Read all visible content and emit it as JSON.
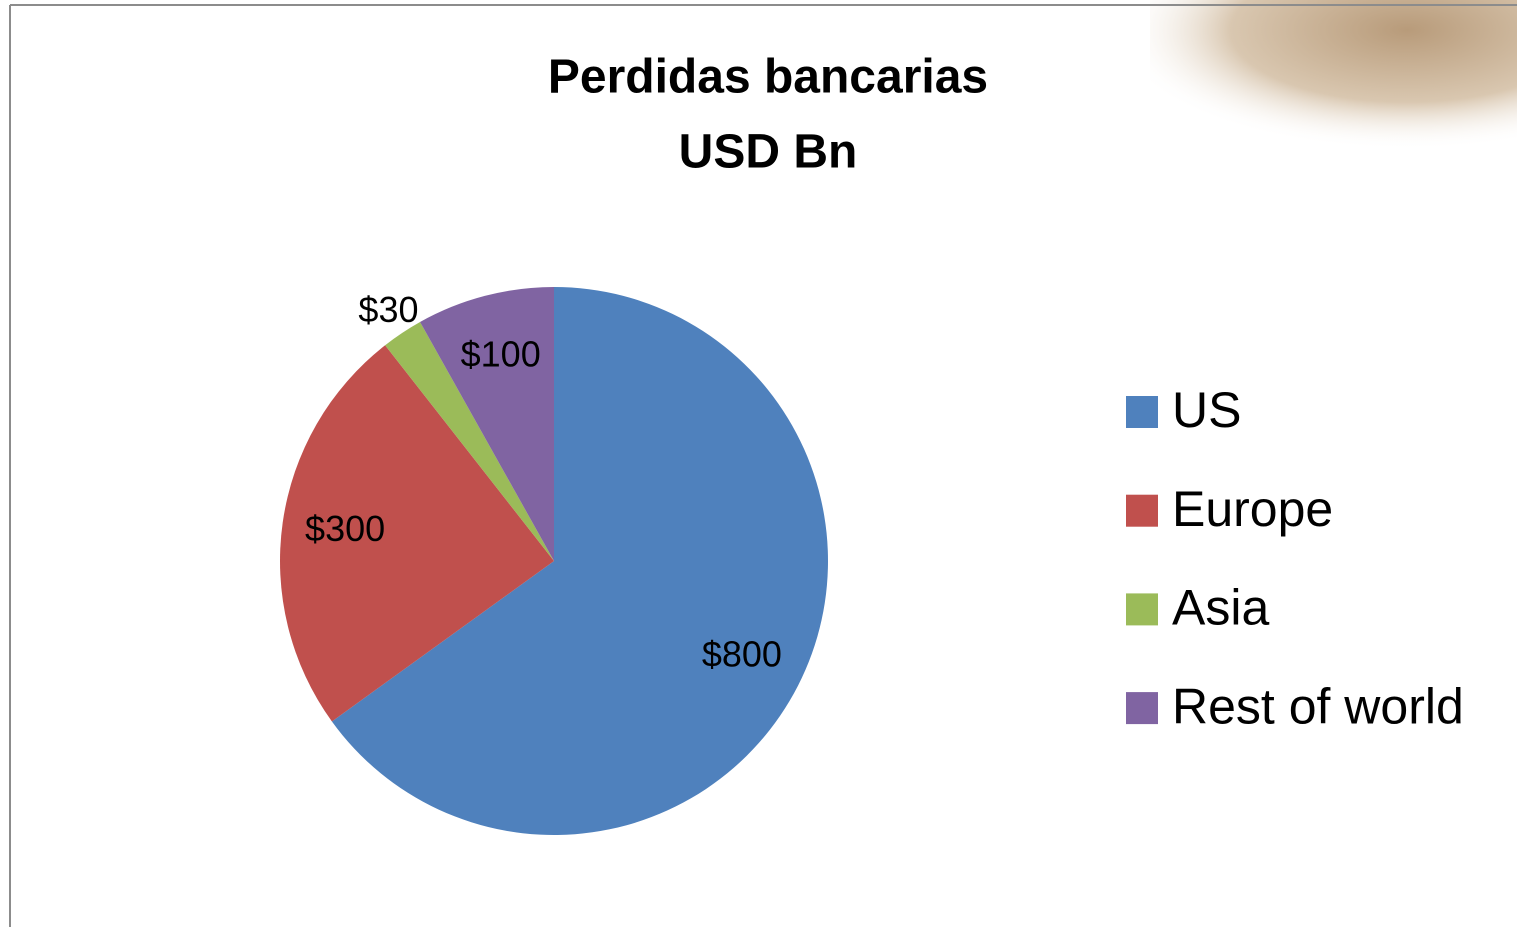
{
  "chart_data": {
    "type": "pie",
    "title": "Perdidas bancarias",
    "subtitle": "USD Bn",
    "categories": [
      "US",
      "Europe",
      "Asia",
      "Rest of world"
    ],
    "values": [
      800,
      300,
      30,
      100
    ],
    "value_labels": [
      "$800",
      "$300",
      "$30",
      "$100"
    ],
    "colors": [
      "#4f81bd",
      "#c0504d",
      "#9bbb59",
      "#8064a2"
    ],
    "legend": "right"
  }
}
